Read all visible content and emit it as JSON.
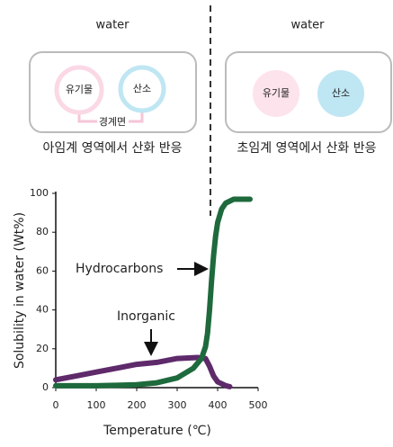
{
  "diagram": {
    "left": {
      "label": "water",
      "organic": "유기물",
      "oxygen": "산소",
      "interface": "경계면",
      "caption": "아임계 영역에서 산화 반응"
    },
    "right": {
      "label": "water",
      "organic": "유기물",
      "oxygen": "산소",
      "caption": "초임계 영역에서 산화 반응"
    }
  },
  "chart_data": {
    "type": "line",
    "xlabel": "Temperature (℃)",
    "ylabel": "Solubility in water (Wt%)",
    "xlim": [
      0,
      500
    ],
    "xticks": [
      0,
      100,
      200,
      300,
      400,
      500
    ],
    "ylim": [
      0,
      100
    ],
    "yticks": [
      0,
      20,
      40,
      60,
      80,
      100
    ],
    "series": [
      {
        "name": "Hydrocarbons",
        "color": "#1e6a3d",
        "x": [
          0,
          50,
          100,
          150,
          200,
          250,
          300,
          340,
          360,
          370,
          375,
          380,
          385,
          390,
          395,
          400,
          410,
          420,
          440,
          460,
          480
        ],
        "values": [
          1,
          1,
          1,
          1.2,
          1.5,
          2.5,
          5,
          10,
          15,
          21,
          28,
          40,
          55,
          68,
          78,
          85,
          92,
          95,
          97,
          97,
          97
        ]
      },
      {
        "name": "Inorganic",
        "color": "#5e2a6a",
        "x": [
          0,
          50,
          100,
          150,
          200,
          250,
          300,
          350,
          370,
          380,
          390,
          400,
          420,
          430
        ],
        "values": [
          4,
          6,
          8,
          10,
          12,
          13,
          15,
          15.5,
          15,
          11,
          6,
          3,
          1,
          0.5
        ]
      }
    ]
  }
}
